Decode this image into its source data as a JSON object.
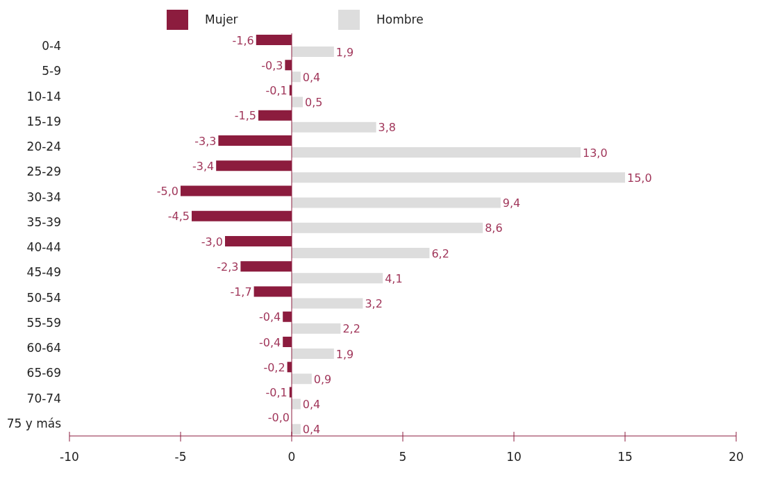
{
  "chart_data": {
    "type": "bar",
    "orientation": "horizontal",
    "categories": [
      "0-4",
      "5-9",
      "10-14",
      "15-19",
      "20-24",
      "25-29",
      "30-34",
      "35-39",
      "40-44",
      "45-49",
      "50-54",
      "55-59",
      "60-64",
      "65-69",
      "70-74",
      "75 y más"
    ],
    "series": [
      {
        "name": "Mujer",
        "color": "#8c1c3e",
        "values": [
          -1.6,
          -0.3,
          -0.1,
          -1.5,
          -3.3,
          -3.4,
          -5.0,
          -4.5,
          -3.0,
          -2.3,
          -1.7,
          -0.4,
          -0.4,
          -0.2,
          -0.1,
          -0.0
        ],
        "value_labels": [
          "-1,6",
          "-0,3",
          "-0,1",
          "-1,5",
          "-3,3",
          "-3,4",
          "-5,0",
          "-4,5",
          "-3,0",
          "-2,3",
          "-1,7",
          "-0,4",
          "-0,4",
          "-0,2",
          "-0,1",
          "-0,0"
        ]
      },
      {
        "name": "Hombre",
        "color": "#dddddd",
        "values": [
          1.9,
          0.4,
          0.5,
          3.8,
          13.0,
          15.0,
          9.4,
          8.6,
          6.2,
          4.1,
          3.2,
          2.2,
          1.9,
          0.9,
          0.4,
          0.4
        ],
        "value_labels": [
          "1,9",
          "0,4",
          "0,5",
          "3,8",
          "13,0",
          "15,0",
          "9,4",
          "8,6",
          "6,2",
          "4,1",
          "3,2",
          "2,2",
          "1,9",
          "0,9",
          "0,4",
          "0,4"
        ]
      }
    ],
    "xlim": [
      -10,
      20
    ],
    "xticks": [
      -10,
      -5,
      0,
      5,
      10,
      15,
      20
    ],
    "ref_lines": [
      {
        "axis": "x",
        "value": 0,
        "color": "#8c1c3e"
      }
    ],
    "legend": "top"
  }
}
